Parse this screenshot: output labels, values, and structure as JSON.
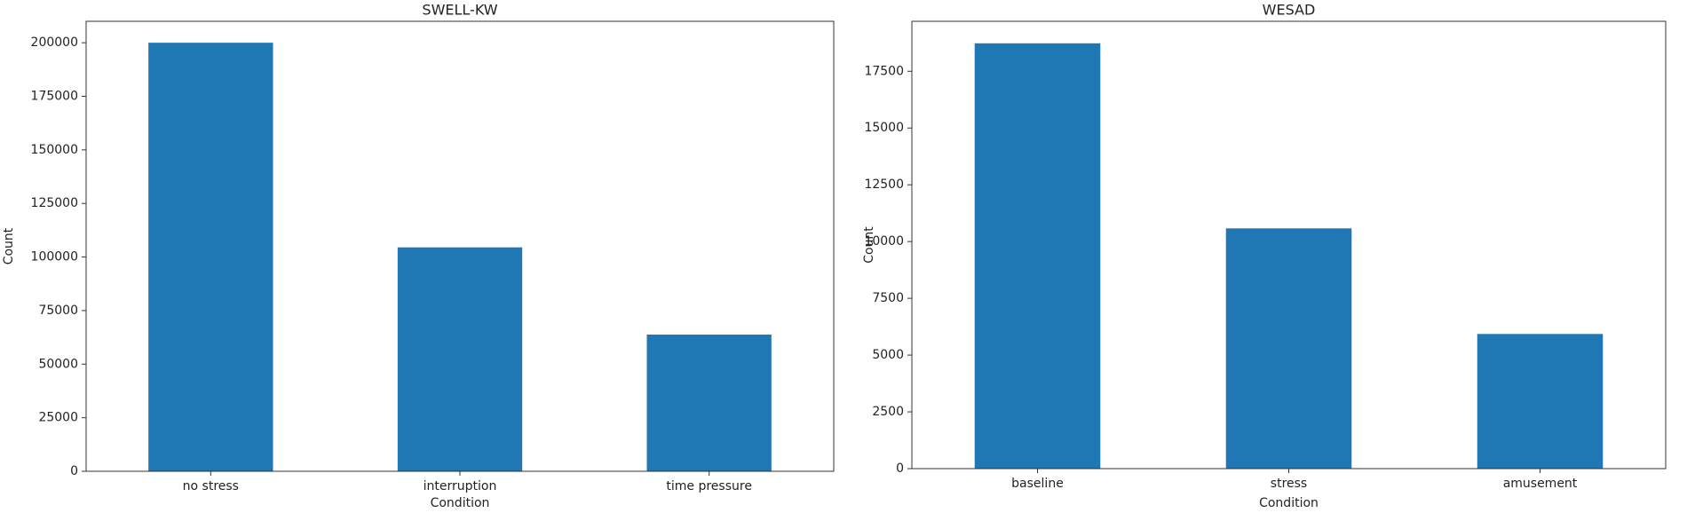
{
  "chart_data": [
    {
      "type": "bar",
      "title": "SWELL-KW",
      "xlabel": "Condition",
      "ylabel": "Count",
      "categories": [
        "no stress",
        "interruption",
        "time pressure"
      ],
      "values": [
        200000,
        104500,
        63800
      ],
      "color": "#1f77b4",
      "ylim": [
        0,
        210000
      ],
      "yticks": [
        0,
        25000,
        50000,
        75000,
        100000,
        125000,
        150000,
        175000,
        200000
      ]
    },
    {
      "type": "bar",
      "title": "WESAD",
      "xlabel": "Condition",
      "ylabel": "Count",
      "categories": [
        "baseline",
        "stress",
        "amusement"
      ],
      "values": [
        18730,
        10580,
        5930
      ],
      "color": "#1f77b4",
      "ylim": [
        0,
        19700
      ],
      "yticks": [
        0,
        2500,
        5000,
        7500,
        10000,
        12500,
        15000,
        17500
      ]
    }
  ]
}
